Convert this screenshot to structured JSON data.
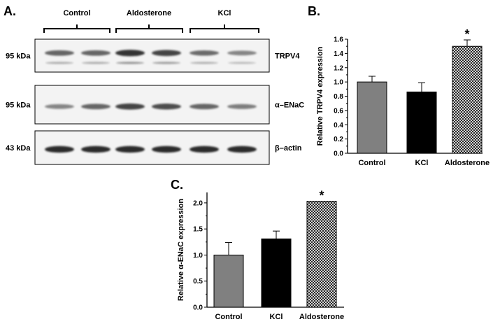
{
  "panel_a": {
    "letter": "A.",
    "groups": [
      "Control",
      "Aldosterone",
      "KCl"
    ],
    "blots": [
      {
        "kda": "95 kDa",
        "protein": "TRPV4",
        "intensity": [
          0.55,
          0.55,
          0.85,
          0.75,
          0.5,
          0.35
        ]
      },
      {
        "kda": "95 kDa",
        "protein": "α–ENaC",
        "intensity": [
          0.35,
          0.55,
          0.75,
          0.7,
          0.55,
          0.4
        ]
      },
      {
        "kda": "43 kDa",
        "protein": "β–actin",
        "intensity": [
          0.9,
          0.9,
          0.9,
          0.9,
          0.9,
          0.9
        ]
      }
    ]
  },
  "chart_data": [
    {
      "panel": "B.",
      "type": "bar",
      "ylabel": "Relative TRPV4 expression",
      "categories": [
        "Control",
        "KCl",
        "Aldosterone"
      ],
      "values": [
        1.0,
        0.86,
        1.5
      ],
      "errors": [
        0.08,
        0.13,
        0.09
      ],
      "fills": [
        "gray",
        "black",
        "crosshatch"
      ],
      "significance": [
        "",
        "",
        "*"
      ],
      "ylim": [
        0,
        1.6
      ],
      "yticks": [
        0.0,
        0.2,
        0.4,
        0.6,
        0.8,
        1.0,
        1.2,
        1.4,
        1.6
      ],
      "yticklabels": [
        "0.0",
        "0.2",
        "0.4",
        "0.6",
        "0.8",
        "1.0",
        "1.2",
        "1.4",
        "1.6"
      ]
    },
    {
      "panel": "C.",
      "type": "bar",
      "ylabel": "Relative α-ENaC expression",
      "categories": [
        "Control",
        "KCl",
        "Aldosterone"
      ],
      "values": [
        1.0,
        1.31,
        2.03
      ],
      "errors": [
        0.24,
        0.15,
        0.0
      ],
      "fills": [
        "gray",
        "black",
        "crosshatch"
      ],
      "significance": [
        "",
        "",
        "*"
      ],
      "ylim": [
        0,
        2.2
      ],
      "yticks": [
        0.0,
        0.5,
        1.0,
        1.5,
        2.0
      ],
      "yticklabels": [
        "0.0",
        "0.5",
        "1.0",
        "1.5",
        "2.0"
      ]
    }
  ],
  "colors": {
    "gray": "#808080",
    "black": "#000000",
    "hatch": "#000000",
    "band": "#1a1a1a"
  }
}
